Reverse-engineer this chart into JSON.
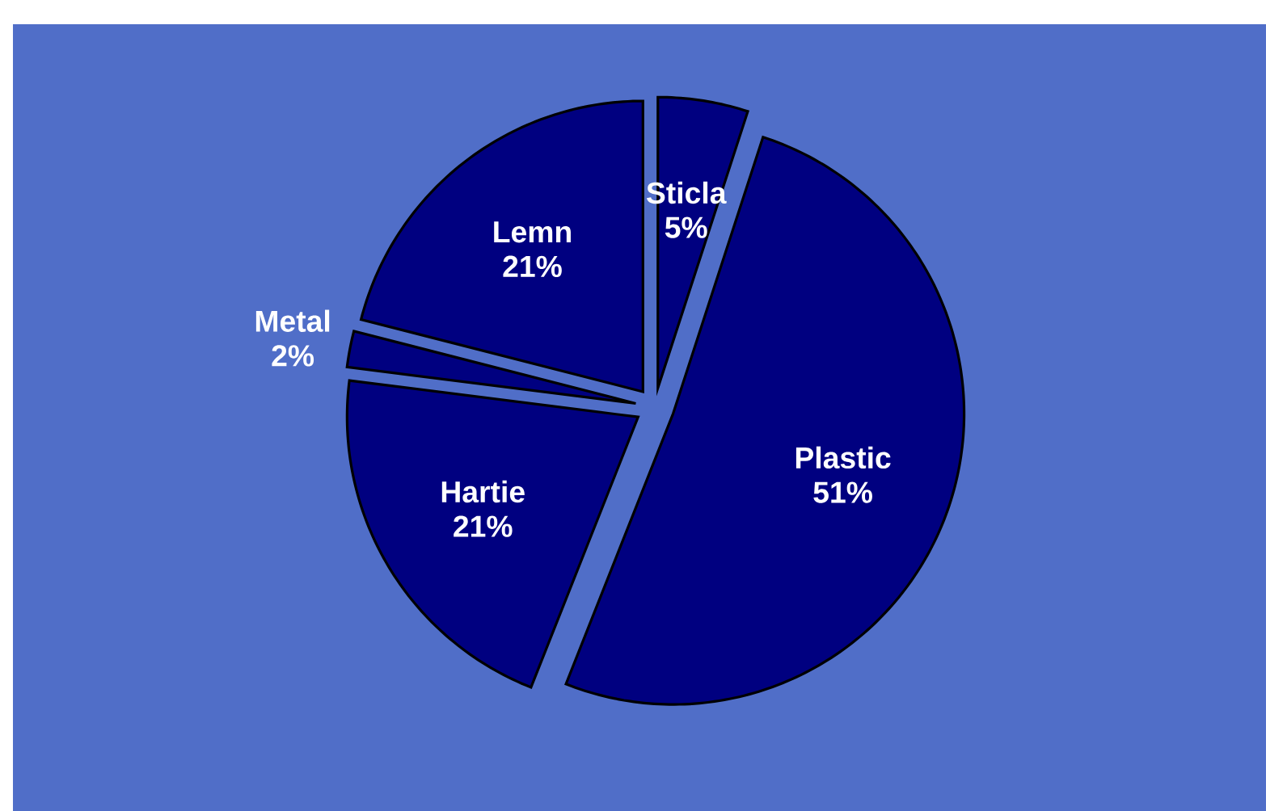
{
  "chart_data": {
    "type": "pie",
    "categories": [
      "Sticla",
      "Plastic",
      "Hartie",
      "Metal",
      "Lemn"
    ],
    "values": [
      5,
      51,
      21,
      2,
      21
    ],
    "value_labels": [
      "5%",
      "51%",
      "21%",
      "2%",
      "21%"
    ],
    "colors": [
      "#000080",
      "#000080",
      "#000080",
      "#000080",
      "#000080"
    ]
  }
}
